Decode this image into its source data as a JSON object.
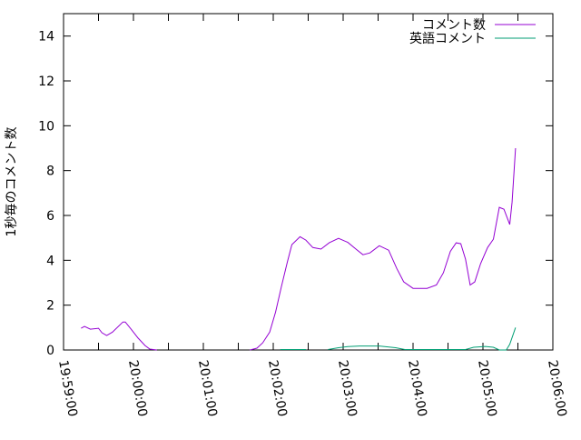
{
  "chart_data": {
    "type": "line",
    "title": "",
    "xlabel": "",
    "ylabel": "1秒毎のコメント数",
    "xlim": [
      "19:59:00",
      "20:06:00"
    ],
    "ylim": [
      0,
      15
    ],
    "xticks": [
      "19:59:00",
      "20:00:00",
      "20:01:00",
      "20:02:00",
      "20:03:00",
      "20:04:00",
      "20:05:00",
      "20:06:00"
    ],
    "yticks": [
      0,
      2,
      4,
      6,
      8,
      10,
      12,
      14
    ],
    "grid": false,
    "legend_position": "top-right",
    "series": [
      {
        "name": "コメント数",
        "color": "#9400d3",
        "points": [
          [
            "19:59:15",
            0.97
          ],
          [
            "19:59:18",
            1.05
          ],
          [
            "19:59:23",
            0.93
          ],
          [
            "19:59:30",
            0.97
          ],
          [
            "19:59:33",
            0.77
          ],
          [
            "19:59:37",
            0.65
          ],
          [
            "19:59:42",
            0.8
          ],
          [
            "19:59:51",
            1.25
          ],
          [
            "19:59:53",
            1.25
          ],
          [
            "19:59:58",
            0.93
          ],
          [
            "20:00:04",
            0.53
          ],
          [
            "20:00:10",
            0.2
          ],
          [
            "20:00:14",
            0.04
          ],
          [
            "20:00:20",
            0
          ],
          null,
          [
            "20:01:40",
            0
          ],
          [
            "20:01:46",
            0.08
          ],
          [
            "20:01:51",
            0.32
          ],
          [
            "20:01:57",
            0.8
          ],
          [
            "20:02:02",
            1.7
          ],
          [
            "20:02:07",
            2.83
          ],
          [
            "20:02:12",
            3.9
          ],
          [
            "20:02:16",
            4.7
          ],
          [
            "20:02:23",
            5.05
          ],
          [
            "20:02:28",
            4.9
          ],
          [
            "20:02:34",
            4.57
          ],
          [
            "20:02:41",
            4.5
          ],
          [
            "20:02:48",
            4.78
          ],
          [
            "20:02:56",
            4.98
          ],
          [
            "20:03:04",
            4.8
          ],
          [
            "20:03:11",
            4.5
          ],
          [
            "20:03:17",
            4.25
          ],
          [
            "20:03:23",
            4.33
          ],
          [
            "20:03:31",
            4.65
          ],
          [
            "20:03:39",
            4.45
          ],
          [
            "20:03:46",
            3.64
          ],
          [
            "20:03:52",
            3.04
          ],
          [
            "20:04:00",
            2.75
          ],
          [
            "20:04:12",
            2.75
          ],
          [
            "20:04:20",
            2.9
          ],
          [
            "20:04:26",
            3.44
          ],
          [
            "20:04:32",
            4.4
          ],
          [
            "20:04:37",
            4.78
          ],
          [
            "20:04:41",
            4.74
          ],
          [
            "20:04:45",
            4.05
          ],
          [
            "20:04:49",
            2.9
          ],
          [
            "20:04:53",
            3.04
          ],
          [
            "20:04:58",
            3.85
          ],
          [
            "20:05:04",
            4.57
          ],
          [
            "20:05:09",
            4.94
          ],
          [
            "20:05:14",
            6.36
          ],
          [
            "20:05:18",
            6.28
          ],
          [
            "20:05:23",
            5.6
          ],
          [
            "20:05:25",
            6.6
          ],
          [
            "20:05:28",
            9.0
          ]
        ]
      },
      {
        "name": "英語コメント",
        "color": "#009e73",
        "points": [
          [
            "20:02:06",
            0.02
          ],
          [
            "20:02:28",
            0.02
          ],
          null,
          [
            "20:02:47",
            0.02
          ],
          [
            "20:02:56",
            0.1
          ],
          [
            "20:03:04",
            0.15
          ],
          [
            "20:03:14",
            0.18
          ],
          [
            "20:03:31",
            0.18
          ],
          [
            "20:03:45",
            0.1
          ],
          [
            "20:03:53",
            0.02
          ],
          [
            "20:04:45",
            0.02
          ],
          [
            "20:04:52",
            0.12
          ],
          [
            "20:05:02",
            0.16
          ],
          [
            "20:05:09",
            0.12
          ],
          [
            "20:05:14",
            0.0
          ],
          [
            "20:05:20",
            0.0
          ],
          [
            "20:05:23",
            0.25
          ],
          [
            "20:05:28",
            1.0
          ]
        ]
      }
    ]
  }
}
